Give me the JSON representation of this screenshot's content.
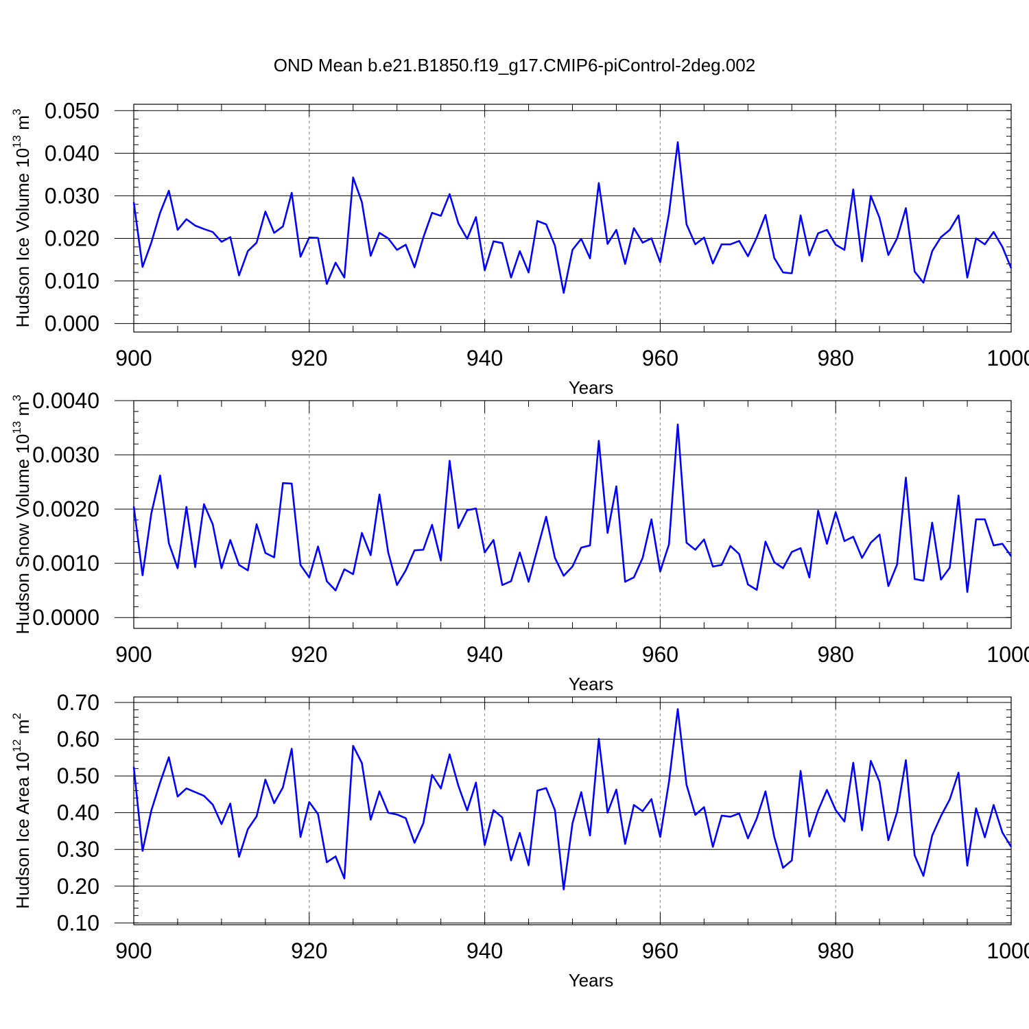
{
  "title": "OND Mean b.e21.B1850.f19_g17.CMIP6-piControl-2deg.002",
  "colors": {
    "series": "#0000ff",
    "axis": "#000000",
    "grid": "#888888"
  },
  "chart_data": [
    {
      "type": "line",
      "ylabel": "Hudson Ice Volume 10",
      "ylabel_exp": "13",
      "ylabel_unit": " m",
      "ylabel_unit_exp": "3",
      "xlabel": "Years",
      "xlim": [
        900,
        1000
      ],
      "ylim": [
        -0.002,
        0.0515
      ],
      "xticks": [
        900,
        920,
        940,
        960,
        980,
        1000
      ],
      "xtick_labels": [
        "900",
        "920",
        "940",
        "960",
        "980",
        "1000"
      ],
      "yticks": [
        0.0,
        0.01,
        0.02,
        0.03,
        0.04,
        0.05
      ],
      "ytick_labels": [
        "0.000",
        "0.010",
        "0.020",
        "0.030",
        "0.040",
        "0.050"
      ],
      "grid_x": [
        920,
        940,
        960,
        980
      ],
      "start_year": 900,
      "series": [
        {
          "values": [
            0.0285,
            0.0133,
            0.019,
            0.026,
            0.0312,
            0.022,
            0.0245,
            0.023,
            0.0222,
            0.0215,
            0.0192,
            0.0203,
            0.0113,
            0.017,
            0.019,
            0.0263,
            0.0213,
            0.0228,
            0.0307,
            0.0157,
            0.0202,
            0.0201,
            0.0093,
            0.0143,
            0.0108,
            0.0343,
            0.0285,
            0.0159,
            0.0213,
            0.02,
            0.0173,
            0.0185,
            0.0132,
            0.0202,
            0.026,
            0.0253,
            0.0304,
            0.0235,
            0.0199,
            0.025,
            0.0125,
            0.0193,
            0.0189,
            0.0108,
            0.017,
            0.012,
            0.0241,
            0.0233,
            0.0183,
            0.0072,
            0.0173,
            0.0199,
            0.0153,
            0.033,
            0.0187,
            0.022,
            0.014,
            0.0224,
            0.019,
            0.02,
            0.0144,
            0.0258,
            0.0426,
            0.0233,
            0.0186,
            0.0202,
            0.0141,
            0.0186,
            0.0186,
            0.0194,
            0.0158,
            0.0202,
            0.0255,
            0.0154,
            0.012,
            0.0118,
            0.0254,
            0.016,
            0.0212,
            0.022,
            0.0185,
            0.0173,
            0.0315,
            0.0146,
            0.03,
            0.0248,
            0.0161,
            0.02,
            0.0271,
            0.0122,
            0.0096,
            0.017,
            0.0203,
            0.022,
            0.0254,
            0.0108,
            0.02,
            0.0186,
            0.0215,
            0.018,
            0.013
          ]
        }
      ]
    },
    {
      "type": "line",
      "ylabel": "Hudson Snow Volume 10",
      "ylabel_exp": "13",
      "ylabel_unit": " m",
      "ylabel_unit_exp": "3",
      "xlabel": "Years",
      "xlim": [
        900,
        1000
      ],
      "ylim": [
        -0.0002,
        0.004
      ],
      "xticks": [
        900,
        920,
        940,
        960,
        980,
        1000
      ],
      "xtick_labels": [
        "900",
        "920",
        "940",
        "960",
        "980",
        "1000"
      ],
      "yticks": [
        0.0,
        0.001,
        0.002,
        0.003,
        0.004
      ],
      "ytick_labels": [
        "0.0000",
        "0.0010",
        "0.0020",
        "0.0030",
        "0.0040"
      ],
      "grid_x": [
        920,
        940,
        960,
        980
      ],
      "start_year": 900,
      "series": [
        {
          "values": [
            0.00205,
            0.00078,
            0.00192,
            0.00262,
            0.00137,
            0.00091,
            0.00204,
            0.00093,
            0.00209,
            0.00172,
            0.00091,
            0.00143,
            0.00097,
            0.00087,
            0.00172,
            0.00119,
            0.00111,
            0.00248,
            0.00247,
            0.00097,
            0.00074,
            0.00131,
            0.00067,
            0.0005,
            0.00089,
            0.0008,
            0.00156,
            0.00115,
            0.00227,
            0.0012,
            0.0006,
            0.00087,
            0.00124,
            0.00125,
            0.00171,
            0.00105,
            0.00289,
            0.00165,
            0.00198,
            0.00201,
            0.0012,
            0.00143,
            0.0006,
            0.00067,
            0.0012,
            0.00066,
            0.00126,
            0.00186,
            0.0011,
            0.00077,
            0.00094,
            0.00129,
            0.00133,
            0.00326,
            0.00156,
            0.00242,
            0.00066,
            0.00074,
            0.0011,
            0.00181,
            0.00085,
            0.00135,
            0.00356,
            0.00138,
            0.00125,
            0.00144,
            0.00094,
            0.00097,
            0.00132,
            0.00117,
            0.00061,
            0.00051,
            0.0014,
            0.00102,
            0.00091,
            0.00121,
            0.00128,
            0.00074,
            0.00197,
            0.00136,
            0.00194,
            0.00141,
            0.00149,
            0.0011,
            0.00138,
            0.00153,
            0.00058,
            0.00098,
            0.00258,
            0.00071,
            0.00068,
            0.00175,
            0.0007,
            0.00092,
            0.00225,
            0.00047,
            0.00181,
            0.00181,
            0.00133,
            0.00136,
            0.00113
          ]
        }
      ]
    },
    {
      "type": "line",
      "ylabel": "Hudson Ice Area 10",
      "ylabel_exp": "12",
      "ylabel_unit": " m",
      "ylabel_unit_exp": "2",
      "xlabel": "Years",
      "xlim": [
        900,
        1000
      ],
      "ylim": [
        0.095,
        0.715
      ],
      "xticks": [
        900,
        920,
        940,
        960,
        980,
        1000
      ],
      "xtick_labels": [
        "900",
        "920",
        "940",
        "960",
        "980",
        "1000"
      ],
      "yticks": [
        0.1,
        0.2,
        0.3,
        0.4,
        0.5,
        0.6,
        0.7
      ],
      "ytick_labels": [
        "0.10",
        "0.20",
        "0.30",
        "0.40",
        "0.50",
        "0.60",
        "0.70"
      ],
      "grid_x": [
        920,
        940,
        960,
        980
      ],
      "start_year": 900,
      "series": [
        {
          "values": [
            0.525,
            0.296,
            0.406,
            0.482,
            0.551,
            0.444,
            0.466,
            0.456,
            0.446,
            0.422,
            0.369,
            0.425,
            0.28,
            0.355,
            0.39,
            0.49,
            0.426,
            0.469,
            0.574,
            0.334,
            0.429,
            0.396,
            0.265,
            0.281,
            0.221,
            0.582,
            0.535,
            0.381,
            0.458,
            0.4,
            0.395,
            0.385,
            0.318,
            0.371,
            0.503,
            0.466,
            0.559,
            0.473,
            0.406,
            0.482,
            0.312,
            0.407,
            0.387,
            0.27,
            0.345,
            0.257,
            0.46,
            0.467,
            0.407,
            0.191,
            0.371,
            0.456,
            0.338,
            0.601,
            0.4,
            0.463,
            0.315,
            0.421,
            0.404,
            0.437,
            0.334,
            0.484,
            0.682,
            0.476,
            0.394,
            0.415,
            0.307,
            0.392,
            0.389,
            0.398,
            0.33,
            0.384,
            0.458,
            0.334,
            0.25,
            0.27,
            0.514,
            0.335,
            0.406,
            0.462,
            0.407,
            0.376,
            0.536,
            0.352,
            0.541,
            0.484,
            0.325,
            0.402,
            0.543,
            0.284,
            0.228,
            0.338,
            0.391,
            0.436,
            0.509,
            0.256,
            0.412,
            0.333,
            0.421,
            0.346,
            0.307
          ]
        }
      ]
    }
  ]
}
